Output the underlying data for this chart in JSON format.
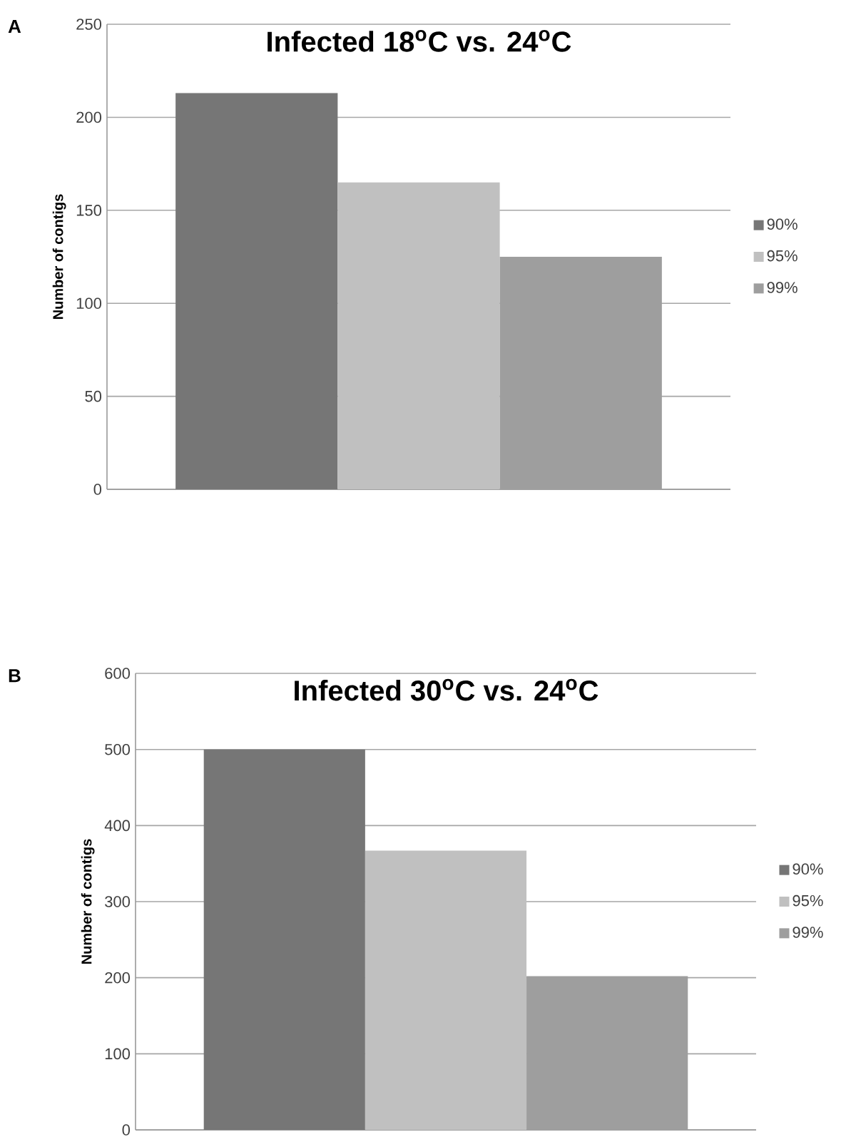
{
  "chart_data": [
    {
      "type": "bar",
      "title": "**Infected 18$^{o}$C vs. 24$^{o}$C**",
      "ylabel": "Number of contigs",
      "categories": [
        null
      ],
      "series": [
        {
          "name": "90%",
          "color": "#767676",
          "values": [
            213
          ]
        },
        {
          "name": "95%",
          "color": "#c0c0c0",
          "values": [
            165
          ]
        },
        {
          "name": "99%",
          "color": "#9e9e9e",
          "values": [
            125
          ]
        }
      ],
      "ylim": [
        0,
        250
      ],
      "yticks": [
        0,
        50,
        100,
        150,
        200,
        250
      ],
      "grid": "y",
      "legend": "right",
      "annotations": [
        "A"
      ]
    },
    {
      "type": "bar",
      "title": "**Infected 30$^{o}$C vs. 24$^{o}$C**",
      "ylabel": "Number of contigs",
      "categories": [
        null
      ],
      "series": [
        {
          "name": "90%",
          "color": "#767676",
          "values": [
            500
          ]
        },
        {
          "name": "95%",
          "color": "#c0c0c0",
          "values": [
            367
          ]
        },
        {
          "name": "99%",
          "color": "#9e9e9e",
          "values": [
            202
          ]
        }
      ],
      "ylim": [
        0,
        600
      ],
      "yticks": [
        0,
        100,
        200,
        300,
        400,
        500,
        600
      ],
      "grid": "y",
      "legend": "right",
      "annotations": [
        "B"
      ]
    }
  ]
}
